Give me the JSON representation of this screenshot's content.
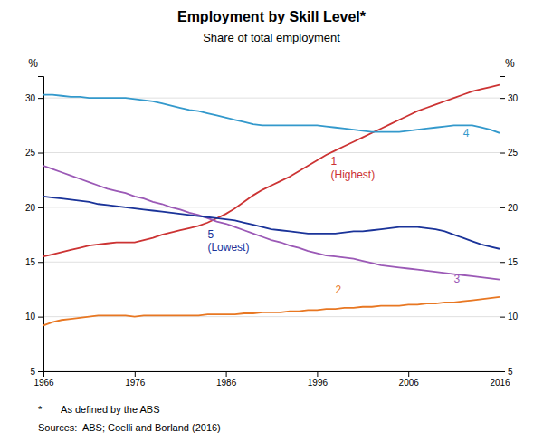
{
  "chart_data": {
    "type": "line",
    "title": "Employment by Skill Level*",
    "subtitle": "Share of total employment",
    "y_label": "%",
    "y2_label": "%",
    "footnotes": [
      "*       As defined by the ABS",
      "Sources:  ABS; Coelli and Borland (2016)"
    ],
    "xlim": [
      1966,
      2016
    ],
    "xticks": [
      1966,
      1976,
      1986,
      1996,
      2006,
      2016
    ],
    "ylim": [
      5,
      32
    ],
    "yticks": [
      5,
      10,
      15,
      20,
      25,
      30
    ],
    "y2lim": [
      5,
      32
    ],
    "y2ticks": [
      5,
      10,
      15,
      20,
      25,
      30
    ],
    "grid": true,
    "x": [
      1966,
      1967,
      1968,
      1969,
      1970,
      1971,
      1972,
      1973,
      1974,
      1975,
      1976,
      1977,
      1978,
      1979,
      1980,
      1981,
      1982,
      1983,
      1984,
      1985,
      1986,
      1987,
      1988,
      1989,
      1990,
      1991,
      1992,
      1993,
      1994,
      1995,
      1996,
      1997,
      1998,
      1999,
      2000,
      2001,
      2002,
      2003,
      2004,
      2005,
      2006,
      2007,
      2008,
      2009,
      2010,
      2011,
      2012,
      2013,
      2014,
      2015,
      2016
    ],
    "series": [
      {
        "color": "#cc3333",
        "values": [
          15.5,
          15.7,
          15.9,
          16.1,
          16.3,
          16.5,
          16.6,
          16.7,
          16.8,
          16.8,
          16.8,
          17.0,
          17.2,
          17.5,
          17.7,
          17.9,
          18.1,
          18.3,
          18.6,
          19.0,
          19.4,
          19.9,
          20.5,
          21.1,
          21.6,
          22.0,
          22.4,
          22.8,
          23.3,
          23.8,
          24.3,
          24.8,
          25.2,
          25.6,
          26.0,
          26.4,
          26.8,
          27.2,
          27.6,
          28.0,
          28.4,
          28.8,
          29.1,
          29.4,
          29.7,
          30.0,
          30.3,
          30.6,
          30.8,
          31.0,
          31.2
        ]
      },
      {
        "color": "#e87722",
        "values": [
          9.2,
          9.5,
          9.7,
          9.8,
          9.9,
          10.0,
          10.1,
          10.1,
          10.1,
          10.1,
          10.0,
          10.1,
          10.1,
          10.1,
          10.1,
          10.1,
          10.1,
          10.1,
          10.2,
          10.2,
          10.2,
          10.2,
          10.3,
          10.3,
          10.4,
          10.4,
          10.4,
          10.5,
          10.5,
          10.6,
          10.6,
          10.7,
          10.7,
          10.8,
          10.8,
          10.9,
          10.9,
          11.0,
          11.0,
          11.0,
          11.1,
          11.1,
          11.2,
          11.2,
          11.3,
          11.3,
          11.4,
          11.5,
          11.6,
          11.7,
          11.8
        ]
      },
      {
        "color": "#9b59b6",
        "values": [
          23.8,
          23.5,
          23.2,
          22.9,
          22.6,
          22.3,
          22.0,
          21.7,
          21.5,
          21.3,
          21.0,
          20.8,
          20.5,
          20.3,
          20.0,
          19.8,
          19.5,
          19.3,
          19.0,
          18.7,
          18.5,
          18.2,
          17.9,
          17.6,
          17.3,
          17.0,
          16.8,
          16.5,
          16.3,
          16.0,
          15.8,
          15.6,
          15.5,
          15.4,
          15.3,
          15.1,
          14.9,
          14.7,
          14.6,
          14.5,
          14.4,
          14.3,
          14.2,
          14.1,
          14.0,
          13.9,
          13.8,
          13.7,
          13.6,
          13.5,
          13.4
        ]
      },
      {
        "color": "#3399cc",
        "values": [
          30.3,
          30.3,
          30.2,
          30.1,
          30.1,
          30.0,
          30.0,
          30.0,
          30.0,
          30.0,
          29.9,
          29.8,
          29.7,
          29.5,
          29.3,
          29.1,
          28.9,
          28.8,
          28.6,
          28.4,
          28.2,
          28.0,
          27.8,
          27.6,
          27.5,
          27.5,
          27.5,
          27.5,
          27.5,
          27.5,
          27.5,
          27.4,
          27.3,
          27.2,
          27.1,
          27.0,
          26.9,
          26.9,
          26.9,
          26.9,
          27.0,
          27.1,
          27.2,
          27.3,
          27.4,
          27.5,
          27.5,
          27.5,
          27.3,
          27.1,
          26.8
        ]
      },
      {
        "color": "#1a3399",
        "values": [
          21.0,
          20.9,
          20.8,
          20.7,
          20.6,
          20.5,
          20.3,
          20.2,
          20.1,
          20.0,
          19.9,
          19.8,
          19.7,
          19.6,
          19.5,
          19.4,
          19.3,
          19.2,
          19.1,
          19.0,
          18.9,
          18.8,
          18.6,
          18.4,
          18.2,
          18.0,
          17.9,
          17.8,
          17.7,
          17.6,
          17.6,
          17.6,
          17.6,
          17.7,
          17.8,
          17.8,
          17.9,
          18.0,
          18.1,
          18.2,
          18.2,
          18.2,
          18.1,
          18.0,
          17.8,
          17.5,
          17.2,
          16.9,
          16.6,
          16.4,
          16.2
        ]
      }
    ],
    "annotations": [
      {
        "text": "1",
        "x": 1997.5,
        "y": 24.2,
        "color": "#cc3333"
      },
      {
        "text": "(Highest)",
        "x": 1997.5,
        "y": 23.0,
        "color": "#cc3333"
      },
      {
        "text": "2",
        "x": 1998,
        "y": 12.5,
        "color": "#e87722"
      },
      {
        "text": "3",
        "x": 2011,
        "y": 13.5,
        "color": "#9b59b6"
      },
      {
        "text": "4",
        "x": 2012,
        "y": 26.8,
        "color": "#3399cc"
      },
      {
        "text": "5",
        "x": 1984,
        "y": 17.5,
        "color": "#1a3399"
      },
      {
        "text": "(Lowest)",
        "x": 1984,
        "y": 16.35,
        "color": "#1a3399"
      }
    ]
  }
}
